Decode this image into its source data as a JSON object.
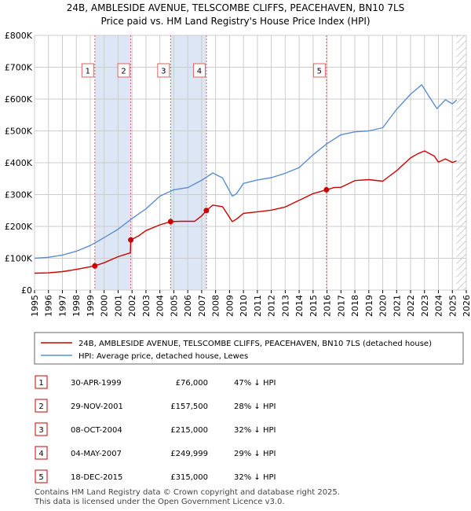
{
  "title_line1": "24B, AMBLESIDE AVENUE, TELSCOMBE CLIFFS, PEACEHAVEN, BN10 7LS",
  "title_line2": "Price paid vs. HM Land Registry's House Price Index (HPI)",
  "colors": {
    "property": "#cc0000",
    "hpi": "#5b8fd0",
    "shade": "#dde6f5",
    "grid": "#cccccc",
    "vline": "#e06060"
  },
  "chart_data": {
    "type": "line",
    "title": "Price paid vs. HM Land Registry's House Price Index (HPI)",
    "xlim": [
      1995,
      2026
    ],
    "ylim": [
      0,
      800000
    ],
    "y_ticks": [
      {
        "value": 0,
        "label": "£0"
      },
      {
        "value": 100000,
        "label": "£100K"
      },
      {
        "value": 200000,
        "label": "£200K"
      },
      {
        "value": 300000,
        "label": "£300K"
      },
      {
        "value": 400000,
        "label": "£400K"
      },
      {
        "value": 500000,
        "label": "£500K"
      },
      {
        "value": 600000,
        "label": "£600K"
      },
      {
        "value": 700000,
        "label": "£700K"
      },
      {
        "value": 800000,
        "label": "£800K"
      }
    ],
    "x_ticks": [
      "1995",
      "1996",
      "1997",
      "1998",
      "1999",
      "2000",
      "2001",
      "2002",
      "2003",
      "2004",
      "2005",
      "2006",
      "2007",
      "2008",
      "2009",
      "2010",
      "2011",
      "2012",
      "2013",
      "2014",
      "2015",
      "2016",
      "2017",
      "2018",
      "2019",
      "2020",
      "2021",
      "2022",
      "2023",
      "2024",
      "2025",
      "2026"
    ],
    "shaded_regions": [
      [
        1999.33,
        2001.91
      ],
      [
        2004.77,
        2007.34
      ]
    ],
    "hatch_after": 2025.3,
    "series": [
      {
        "name": "24B, AMBLESIDE AVENUE, TELSCOMBE CLIFFS, PEACEHAVEN, BN10 7LS (detached house)",
        "x": [
          1995,
          1996,
          1997,
          1998,
          1999.33,
          2000,
          2001,
          2001.88,
          2001.91,
          2002.5,
          2003,
          2004,
          2004.77,
          2005.5,
          2006.5,
          2007.0,
          2007.34,
          2007.8,
          2008.5,
          2009.2,
          2009.5,
          2010,
          2011,
          2012,
          2013,
          2014,
          2015,
          2015.96,
          2016.5,
          2017,
          2018,
          2019,
          2020,
          2021,
          2022,
          2022.5,
          2023,
          2023.7,
          2024,
          2024.5,
          2025,
          2025.3
        ],
        "values": [
          53000,
          54000,
          58000,
          65000,
          76000,
          86000,
          105000,
          117000,
          157500,
          171000,
          187000,
          205000,
          215000,
          216000,
          216000,
          233000,
          249999,
          267000,
          262000,
          215000,
          223000,
          241000,
          246000,
          251000,
          261000,
          282000,
          303000,
          315000,
          322000,
          323000,
          344000,
          347000,
          342000,
          375000,
          415000,
          428000,
          437000,
          421000,
          402000,
          412000,
          401000,
          406000
        ]
      },
      {
        "name": "HPI: Average price, detached house, Lewes",
        "x": [
          1995,
          1996,
          1997,
          1998,
          1999,
          2000,
          2001,
          2002,
          2003,
          2004,
          2005,
          2006,
          2007,
          2007.8,
          2008.5,
          2009.2,
          2009.5,
          2010,
          2011,
          2012,
          2013,
          2014,
          2015,
          2016,
          2017,
          2018,
          2019,
          2020,
          2021,
          2022,
          2022.8,
          2023.3,
          2023.9,
          2024.5,
          2025,
          2025.3
        ],
        "values": [
          100000,
          103000,
          110000,
          122000,
          140000,
          165000,
          191000,
          225000,
          255000,
          295000,
          315000,
          322000,
          345000,
          368000,
          352000,
          295000,
          303000,
          335000,
          346000,
          353000,
          367000,
          385000,
          425000,
          460000,
          488000,
          497000,
          500000,
          510000,
          568000,
          615000,
          645000,
          610000,
          570000,
          598000,
          585000,
          597000
        ]
      }
    ],
    "sales": [
      {
        "id": "1",
        "x": 1999.33,
        "value": 76000
      },
      {
        "id": "2",
        "x": 2001.91,
        "value": 157500
      },
      {
        "id": "3",
        "x": 2004.77,
        "value": 215000
      },
      {
        "id": "4",
        "x": 2007.34,
        "value": 249999
      },
      {
        "id": "5",
        "x": 2015.96,
        "value": 315000
      }
    ]
  },
  "legend": {
    "property_label": "24B, AMBLESIDE AVENUE, TELSCOMBE CLIFFS, PEACEHAVEN, BN10 7LS (detached house)",
    "hpi_label": "HPI: Average price, detached house, Lewes"
  },
  "transactions": [
    {
      "num": "1",
      "date": "30-APR-1999",
      "price": "£76,000",
      "hpi": "47% ↓ HPI"
    },
    {
      "num": "2",
      "date": "29-NOV-2001",
      "price": "£157,500",
      "hpi": "28% ↓ HPI"
    },
    {
      "num": "3",
      "date": "08-OCT-2004",
      "price": "£215,000",
      "hpi": "32% ↓ HPI"
    },
    {
      "num": "4",
      "date": "04-MAY-2007",
      "price": "£249,999",
      "hpi": "29% ↓ HPI"
    },
    {
      "num": "5",
      "date": "18-DEC-2015",
      "price": "£315,000",
      "hpi": "32% ↓ HPI"
    }
  ],
  "footer": {
    "line1": "Contains HM Land Registry data © Crown copyright and database right 2025.",
    "line2": "This data is licensed under the Open Government Licence v3.0."
  }
}
